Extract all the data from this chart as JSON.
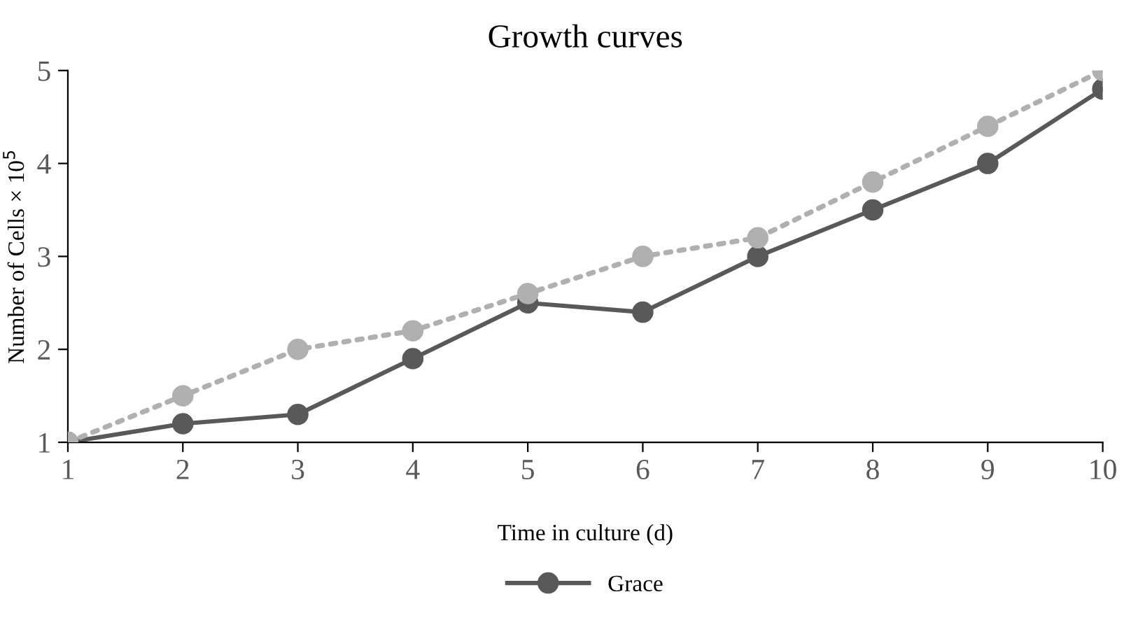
{
  "chart_data": {
    "type": "line",
    "title": "Growth curves",
    "xlabel": "Time in culture (d)",
    "ylabel": "Number of Cells × 10$^{5}$",
    "x": [
      1,
      2,
      3,
      4,
      5,
      6,
      7,
      8,
      9,
      10
    ],
    "xlim": [
      1,
      10
    ],
    "xticks": [
      1,
      2,
      3,
      4,
      5,
      6,
      7,
      8,
      9,
      10
    ],
    "ylim": [
      1,
      5
    ],
    "yticks": [
      1,
      2,
      3,
      4,
      5
    ],
    "marker": "circle",
    "grid": false,
    "legend": "bottom",
    "series": [
      {
        "name": "Grace",
        "color": "#595959",
        "line_style": "solid",
        "values": [
          1.0,
          1.2,
          1.3,
          1.9,
          2.5,
          2.4,
          3.0,
          3.5,
          4.0,
          4.8
        ]
      },
      {
        "color": "#b0b0b0",
        "line_style": "dotted",
        "values": [
          1.0,
          1.5,
          2.0,
          2.2,
          2.6,
          3.0,
          3.2,
          3.8,
          4.4,
          5.0
        ]
      }
    ]
  }
}
